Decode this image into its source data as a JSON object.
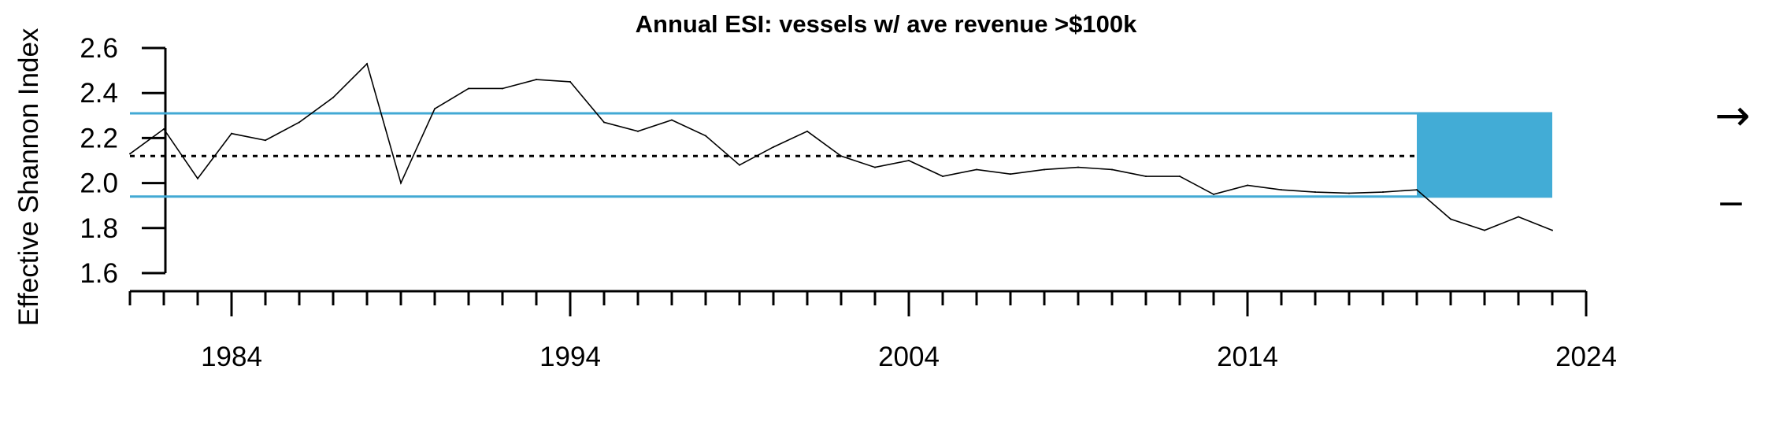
{
  "chart_data": {
    "type": "line",
    "title": "Annual ESI: vessels w/ ave revenue >$100k",
    "xlabel": "",
    "ylabel": "Effective Shannon Index",
    "xlim": [
      1981,
      2024
    ],
    "ylim": [
      1.6,
      2.6
    ],
    "x_ticks_labeled": [
      "1984",
      "1994",
      "2004",
      "2014",
      "2024"
    ],
    "y_ticks_labeled": [
      "1.6",
      "1.8",
      "2.0",
      "2.2",
      "2.4",
      "2.6"
    ],
    "x": [
      1981,
      1982,
      1983,
      1984,
      1985,
      1986,
      1987,
      1988,
      1989,
      1990,
      1991,
      1992,
      1993,
      1994,
      1995,
      1996,
      1997,
      1998,
      1999,
      2000,
      2001,
      2002,
      2003,
      2004,
      2005,
      2006,
      2007,
      2008,
      2009,
      2010,
      2011,
      2012,
      2013,
      2014,
      2015,
      2016,
      2017,
      2018,
      2019,
      2020,
      2021,
      2022,
      2023
    ],
    "series": [
      {
        "values": [
          2.13,
          2.24,
          2.02,
          2.22,
          2.19,
          2.27,
          2.38,
          2.53,
          2.0,
          2.33,
          2.42,
          2.42,
          2.46,
          2.45,
          2.27,
          2.23,
          2.28,
          2.21,
          2.08,
          2.16,
          2.23,
          2.12,
          2.07,
          2.1,
          2.03,
          2.06,
          2.04,
          2.06,
          2.07,
          2.06,
          2.03,
          2.03,
          1.95,
          1.99,
          1.97,
          1.96,
          1.955,
          1.96,
          1.97,
          1.84,
          1.79,
          1.85,
          1.79
        ]
      }
    ],
    "mean_line": 2.12,
    "upper_sd_line": 2.31,
    "lower_sd_line": 1.94,
    "recent_window": {
      "from": 2019,
      "to": 2023
    },
    "trend_symbol": "→",
    "mean_symbol": "−",
    "colors": {
      "reference_lines": "#42a9d4",
      "recent_box": "#42acd6",
      "series_line": "#000000",
      "mean_line": "#000000"
    },
    "grid": false,
    "legend": "none"
  }
}
